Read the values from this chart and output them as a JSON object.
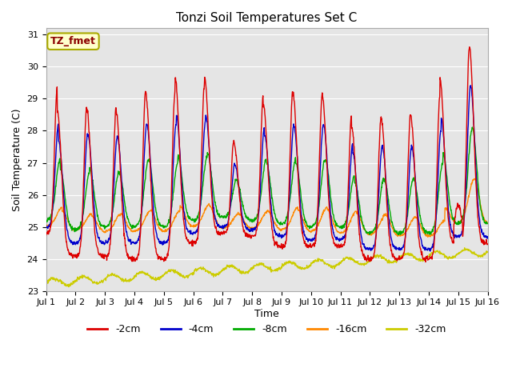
{
  "title": "Tonzi Soil Temperatures Set C",
  "xlabel": "Time",
  "ylabel": "Soil Temperature (C)",
  "xlim": [
    0,
    15
  ],
  "ylim": [
    23.0,
    31.2
  ],
  "yticks": [
    23.0,
    24.0,
    25.0,
    26.0,
    27.0,
    28.0,
    29.0,
    30.0,
    31.0
  ],
  "xtick_labels": [
    "Jul 1",
    "Jul 2",
    "Jul 3",
    "Jul 4",
    "Jul 5",
    "Jul 6",
    "Jul 7",
    "Jul 8",
    "Jul 9",
    "Jul 10",
    "Jul 11",
    "Jul 12",
    "Jul 13",
    "Jul 14",
    "Jul 15",
    "Jul 16"
  ],
  "xtick_positions": [
    0,
    1,
    2,
    3,
    4,
    5,
    6,
    7,
    8,
    9,
    10,
    11,
    12,
    13,
    14,
    15
  ],
  "colors": {
    "-2cm": "#dd0000",
    "-4cm": "#0000cc",
    "-8cm": "#00aa00",
    "-16cm": "#ff8800",
    "-32cm": "#cccc00"
  },
  "annotation_text": "TZ_fmet",
  "annotation_bg": "#ffffcc",
  "annotation_border": "#aaaa00",
  "bg_color": "#e5e5e5",
  "grid_color": "#ffffff"
}
